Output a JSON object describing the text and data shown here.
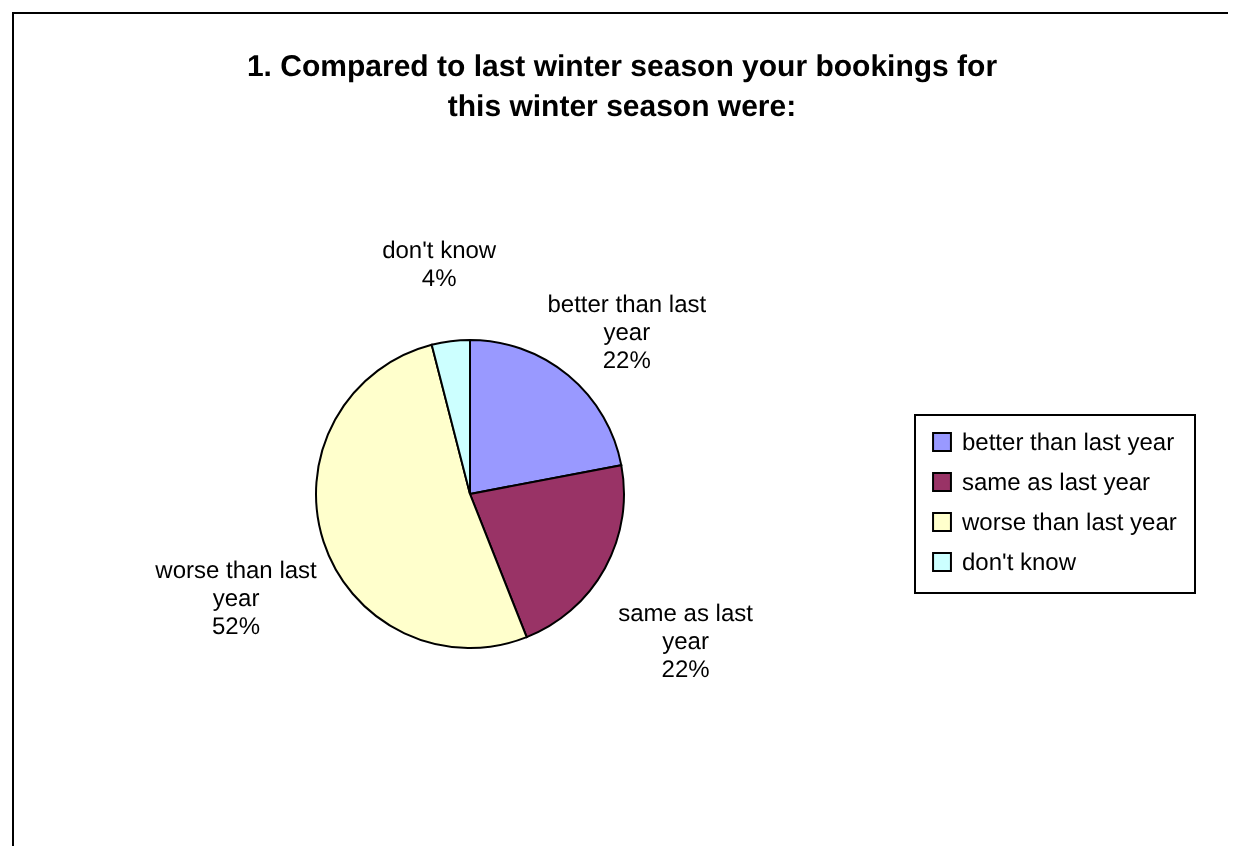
{
  "chart_data": {
    "type": "pie",
    "title": "1.  Compared to last winter season your bookings for this winter season were:",
    "categories": [
      "better than last year",
      "same as last year",
      "worse than last year",
      "don't know"
    ],
    "values": [
      22,
      22,
      52,
      4
    ],
    "colors": [
      "#9999ff",
      "#993366",
      "#ffffcc",
      "#ccffff"
    ],
    "value_labels": [
      "22%",
      "22%",
      "52%",
      "4%"
    ],
    "legend": "right"
  }
}
